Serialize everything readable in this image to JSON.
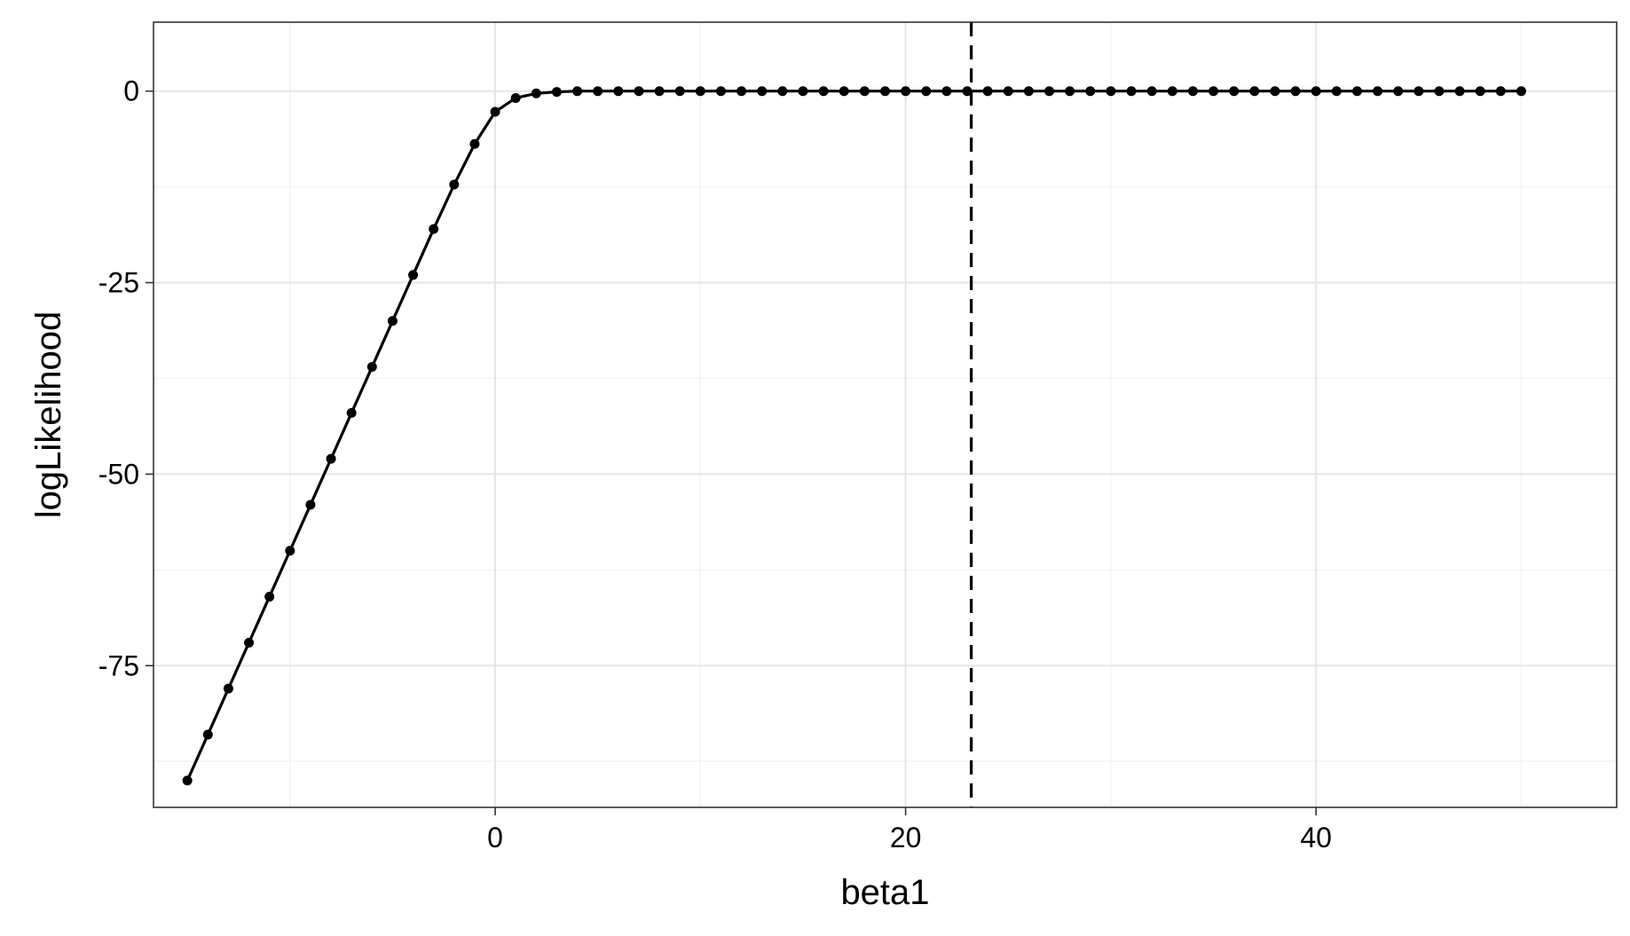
{
  "chart_data": {
    "type": "line",
    "title": "",
    "xlabel": "beta1",
    "ylabel": "logLikelihood",
    "xlim": [
      -16.65,
      54.65
    ],
    "ylim": [
      -93.5,
      9
    ],
    "x_ticks": [
      0,
      20,
      40
    ],
    "x_tick_labels": [
      "0",
      "20",
      "40"
    ],
    "y_ticks": [
      0,
      -25,
      -50,
      -75
    ],
    "y_tick_labels": [
      "0",
      "-25",
      "-50",
      "-75"
    ],
    "grid": true,
    "markers": true,
    "legend": "none",
    "series": [
      {
        "x": [
          -15,
          -14,
          -13,
          -12,
          -11,
          -10,
          -9,
          -8,
          -7,
          -6,
          -5,
          -4,
          -3,
          -2,
          -1,
          0,
          1,
          2,
          3,
          4,
          5,
          6,
          7,
          8,
          9,
          10,
          11,
          12,
          13,
          14,
          15,
          16,
          17,
          18,
          19,
          20,
          21,
          22,
          23,
          24,
          25,
          26,
          27,
          28,
          29,
          30,
          31,
          32,
          33,
          34,
          35,
          36,
          37,
          38,
          39,
          40,
          41,
          42,
          43,
          44,
          45,
          46,
          47,
          48,
          49,
          50
        ],
        "y": [
          -90,
          -84,
          -78,
          -72,
          -66,
          -60,
          -54,
          -48,
          -42,
          -36,
          -30,
          -24,
          -18,
          -12.2,
          -6.9,
          -2.7,
          -0.9,
          -0.3,
          -0.1,
          0,
          0,
          0,
          0,
          0,
          0,
          0,
          0,
          0,
          0,
          0,
          0,
          0,
          0,
          0,
          0,
          0,
          0,
          0,
          0,
          0,
          0,
          0,
          0,
          0,
          0,
          0,
          0,
          0,
          0,
          0,
          0,
          0,
          0,
          0,
          0,
          0,
          0,
          0,
          0,
          0,
          0,
          0,
          0,
          0,
          0,
          0
        ]
      }
    ],
    "vline": {
      "x": 23.2,
      "style": "dashed"
    },
    "colors": {
      "line": "#000000",
      "points": "#000000",
      "grid_major": "#e5e5e5",
      "grid_minor": "#f2f2f2",
      "panel_border": "#333333",
      "background": "#ffffff"
    }
  }
}
